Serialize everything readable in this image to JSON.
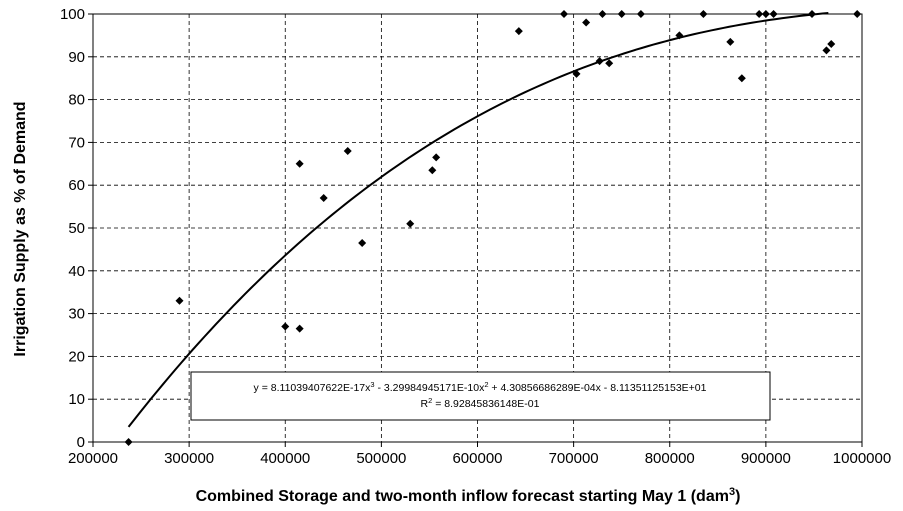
{
  "chart_data": {
    "type": "scatter",
    "xlabel": "Combined Storage and two-month inflow forecast starting May 1 (dam",
    "xlabel_sup": "3",
    "xlabel_end": ")",
    "ylabel": "Irrigation Supply as % of Demand",
    "xlim": [
      200000,
      1000000
    ],
    "ylim": [
      0,
      100
    ],
    "x_ticks": [
      200000,
      300000,
      400000,
      500000,
      600000,
      700000,
      800000,
      900000,
      1000000
    ],
    "y_ticks": [
      0,
      10,
      20,
      30,
      40,
      50,
      60,
      70,
      80,
      90,
      100
    ],
    "grid": true,
    "marker": "diamond",
    "series": [
      {
        "points": [
          [
            237000,
            0
          ],
          [
            290000,
            33
          ],
          [
            400000,
            27
          ],
          [
            415000,
            26.5
          ],
          [
            415000,
            65
          ],
          [
            440000,
            57
          ],
          [
            465000,
            68
          ],
          [
            480000,
            46.5
          ],
          [
            530000,
            51
          ],
          [
            553000,
            63.5
          ],
          [
            557000,
            66.5
          ],
          [
            643000,
            96
          ],
          [
            690000,
            100
          ],
          [
            703000,
            86
          ],
          [
            713000,
            98
          ],
          [
            727000,
            89
          ],
          [
            730000,
            100
          ],
          [
            737000,
            88.5
          ],
          [
            750000,
            100
          ],
          [
            770000,
            100
          ],
          [
            810000,
            95
          ],
          [
            835000,
            100
          ],
          [
            863000,
            93.5
          ],
          [
            875000,
            85
          ],
          [
            893000,
            100
          ],
          [
            900000,
            100
          ],
          [
            908000,
            100
          ],
          [
            948000,
            100
          ],
          [
            963000,
            91.5
          ],
          [
            968000,
            93
          ],
          [
            995000,
            100
          ]
        ]
      }
    ],
    "trendline": {
      "type": "polynomial",
      "coefficients": [
        8.11039407622e-17,
        -3.29984945171e-10,
        0.000430856686289,
        -81.1351125153
      ],
      "x_range": [
        237000,
        965000
      ]
    },
    "equation": {
      "line1_a": "y = 8.11039407622E-17x",
      "line1_sup1": "3",
      "line1_b": " - 3.29984945171E-10x",
      "line1_sup2": "2",
      "line1_c": " + 4.30856686289E-04x - 8.11351125153E+01",
      "line2_a": "R",
      "line2_sup": "2",
      "line2_b": " = 8.92845836148E-01"
    }
  }
}
